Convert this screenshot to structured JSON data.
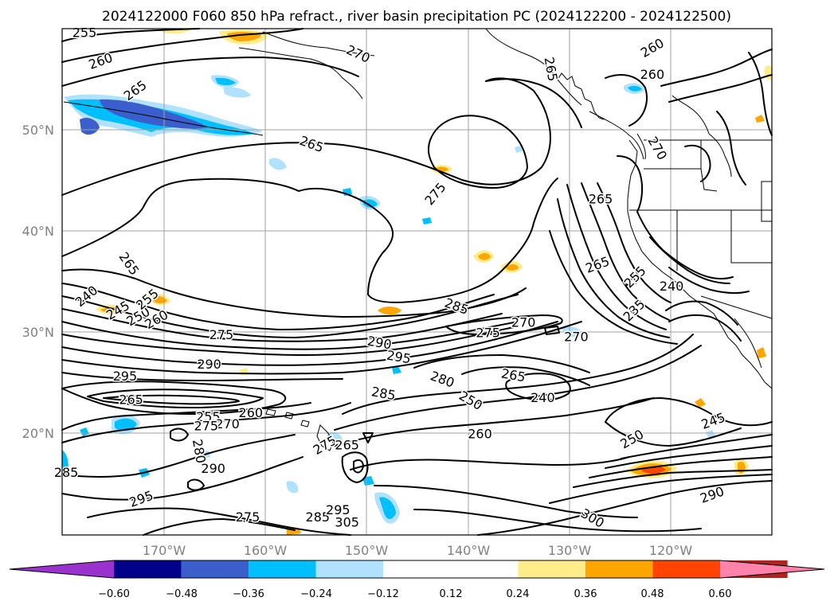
{
  "title": "2024122000 F060 850 hPa refract., river basin precipitation PC (2024122200 - 2024122500)",
  "map": {
    "lat_labels": [
      {
        "lat": 50,
        "text": "50°N"
      },
      {
        "lat": 40,
        "text": "40°N"
      },
      {
        "lat": 30,
        "text": "30°N"
      },
      {
        "lat": 20,
        "text": "20°N"
      }
    ],
    "lon_labels": [
      {
        "lon": -170,
        "text": "170°W"
      },
      {
        "lon": -160,
        "text": "160°W"
      },
      {
        "lon": -150,
        "text": "150°W"
      },
      {
        "lon": -140,
        "text": "140°W"
      },
      {
        "lon": -130,
        "text": "130°W"
      },
      {
        "lon": -120,
        "text": "120°W"
      }
    ],
    "gridlines": true,
    "contour_labels": [
      {
        "text": "255",
        "lon": -177.8,
        "lat": 59.6,
        "rot": 0
      },
      {
        "text": "260",
        "lon": -176.2,
        "lat": 56.8,
        "rot": -20
      },
      {
        "text": "265",
        "lon": -172.8,
        "lat": 53.9,
        "rot": -35
      },
      {
        "text": "270",
        "lon": -150.8,
        "lat": 57.5,
        "rot": 25
      },
      {
        "text": "265",
        "lon": -155.4,
        "lat": 48.6,
        "rot": 20
      },
      {
        "text": "275",
        "lon": -143.2,
        "lat": 43.7,
        "rot": -50
      },
      {
        "text": "265",
        "lon": -131.8,
        "lat": 56.0,
        "rot": 80
      },
      {
        "text": "260",
        "lon": -121.8,
        "lat": 58.1,
        "rot": -30
      },
      {
        "text": "260",
        "lon": -121.8,
        "lat": 55.5,
        "rot": 0
      },
      {
        "text": "270",
        "lon": -121.3,
        "lat": 48.2,
        "rot": 60
      },
      {
        "text": "265",
        "lon": -126.9,
        "lat": 43.2,
        "rot": 0
      },
      {
        "text": "265",
        "lon": -127.2,
        "lat": 36.7,
        "rot": -20
      },
      {
        "text": "255",
        "lon": -123.5,
        "lat": 35.5,
        "rot": -45
      },
      {
        "text": "240",
        "lon": -119.9,
        "lat": 34.6,
        "rot": 0
      },
      {
        "text": "235",
        "lon": -123.6,
        "lat": 32.2,
        "rot": -45
      },
      {
        "text": "265",
        "lon": -173.4,
        "lat": 36.8,
        "rot": 55
      },
      {
        "text": "240",
        "lon": -177.6,
        "lat": 33.6,
        "rot": -40
      },
      {
        "text": "245",
        "lon": -174.5,
        "lat": 32.2,
        "rot": -30
      },
      {
        "text": "250",
        "lon": -172.5,
        "lat": 31.6,
        "rot": -30
      },
      {
        "text": "255",
        "lon": -171.6,
        "lat": 33.3,
        "rot": -40
      },
      {
        "text": "260",
        "lon": -170.7,
        "lat": 31.3,
        "rot": -30
      },
      {
        "text": "275",
        "lon": -164.3,
        "lat": 29.8,
        "rot": 0
      },
      {
        "text": "290",
        "lon": -148.7,
        "lat": 29.0,
        "rot": 10
      },
      {
        "text": "295",
        "lon": -146.8,
        "lat": 27.6,
        "rot": 10
      },
      {
        "text": "285",
        "lon": -141.1,
        "lat": 32.6,
        "rot": 20
      },
      {
        "text": "275",
        "lon": -138.0,
        "lat": 30.0,
        "rot": 0
      },
      {
        "text": "270",
        "lon": -134.5,
        "lat": 31.0,
        "rot": 0
      },
      {
        "text": "270",
        "lon": -129.3,
        "lat": 29.6,
        "rot": 0
      },
      {
        "text": "280",
        "lon": -142.5,
        "lat": 25.4,
        "rot": 20
      },
      {
        "text": "265",
        "lon": -135.5,
        "lat": 25.8,
        "rot": 10
      },
      {
        "text": "285",
        "lon": -148.3,
        "lat": 24.0,
        "rot": 10
      },
      {
        "text": "250",
        "lon": -139.7,
        "lat": 23.3,
        "rot": 30
      },
      {
        "text": "240",
        "lon": -132.6,
        "lat": 23.6,
        "rot": 0
      },
      {
        "text": "295",
        "lon": -173.8,
        "lat": 25.7,
        "rot": 0
      },
      {
        "text": "290",
        "lon": -165.5,
        "lat": 26.9,
        "rot": 0
      },
      {
        "text": "265",
        "lon": -173.2,
        "lat": 23.4,
        "rot": 0
      },
      {
        "text": "255",
        "lon": -165.6,
        "lat": 21.7,
        "rot": 0
      },
      {
        "text": "260",
        "lon": -161.4,
        "lat": 22.1,
        "rot": 0
      },
      {
        "text": "270",
        "lon": -163.7,
        "lat": 21.0,
        "rot": 0
      },
      {
        "text": "275",
        "lon": -165.8,
        "lat": 20.8,
        "rot": 0
      },
      {
        "text": "280",
        "lon": -166.5,
        "lat": 18.3,
        "rot": 80
      },
      {
        "text": "290",
        "lon": -165.1,
        "lat": 16.6,
        "rot": 0
      },
      {
        "text": "295",
        "lon": -172.2,
        "lat": 13.6,
        "rot": -20
      },
      {
        "text": "275",
        "lon": -154.1,
        "lat": 18.9,
        "rot": -30
      },
      {
        "text": "265",
        "lon": -151.9,
        "lat": 18.9,
        "rot": 0
      },
      {
        "text": "260",
        "lon": -138.8,
        "lat": 20.0,
        "rot": 0
      },
      {
        "text": "250",
        "lon": -123.8,
        "lat": 19.5,
        "rot": -30
      },
      {
        "text": "245",
        "lon": -115.8,
        "lat": 21.3,
        "rot": -20
      },
      {
        "text": "275",
        "lon": -161.7,
        "lat": 11.8,
        "rot": 0
      },
      {
        "text": "285",
        "lon": -154.8,
        "lat": 11.8,
        "rot": 0
      },
      {
        "text": "295",
        "lon": -152.8,
        "lat": 12.5,
        "rot": 0
      },
      {
        "text": "305",
        "lon": -151.9,
        "lat": 11.3,
        "rot": 0
      },
      {
        "text": "300",
        "lon": -127.7,
        "lat": 11.7,
        "rot": 30
      },
      {
        "text": "290",
        "lon": -115.9,
        "lat": 14.0,
        "rot": -20
      },
      {
        "text": "285",
        "lon": -179.6,
        "lat": 16.2,
        "rot": 0
      }
    ]
  },
  "colorbar": {
    "tick_labels": [
      "−0.60",
      "−0.48",
      "−0.36",
      "−0.24",
      "−0.12",
      "0.12",
      "0.24",
      "0.36",
      "0.48",
      "0.60"
    ],
    "segments": [
      {
        "from": -0.72,
        "to": -0.6,
        "color": "#9a32cd"
      },
      {
        "from": -0.6,
        "to": -0.48,
        "color": "#00008b"
      },
      {
        "from": -0.48,
        "to": -0.36,
        "color": "#3a5fcd"
      },
      {
        "from": -0.36,
        "to": -0.24,
        "color": "#00bfff"
      },
      {
        "from": -0.24,
        "to": -0.12,
        "color": "#b0e2ff"
      },
      {
        "from": -0.12,
        "to": 0.12,
        "color": "#ffffff"
      },
      {
        "from": 0.12,
        "to": 0.24,
        "color": "#ffec8b"
      },
      {
        "from": 0.24,
        "to": 0.36,
        "color": "#ffa500"
      },
      {
        "from": 0.36,
        "to": 0.48,
        "color": "#ff4500"
      },
      {
        "from": 0.48,
        "to": 0.6,
        "color": "#b22222"
      },
      {
        "from": 0.6,
        "to": 0.72,
        "color": "#ff82ab"
      }
    ]
  }
}
